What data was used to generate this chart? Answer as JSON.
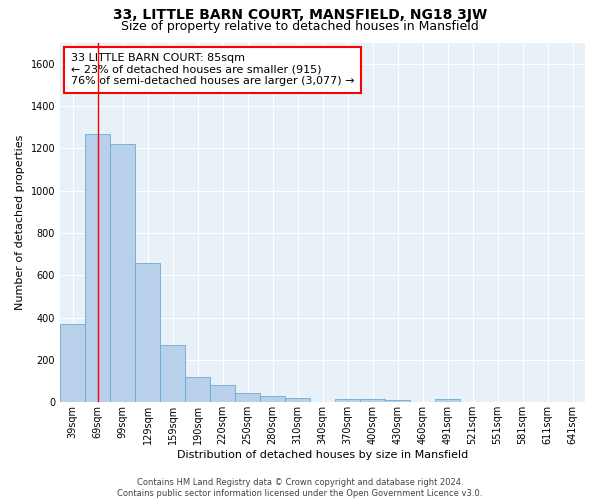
{
  "title": "33, LITTLE BARN COURT, MANSFIELD, NG18 3JW",
  "subtitle": "Size of property relative to detached houses in Mansfield",
  "xlabel": "Distribution of detached houses by size in Mansfield",
  "ylabel": "Number of detached properties",
  "categories": [
    "39sqm",
    "69sqm",
    "99sqm",
    "129sqm",
    "159sqm",
    "190sqm",
    "220sqm",
    "250sqm",
    "280sqm",
    "310sqm",
    "340sqm",
    "370sqm",
    "400sqm",
    "430sqm",
    "460sqm",
    "491sqm",
    "521sqm",
    "551sqm",
    "581sqm",
    "611sqm",
    "641sqm"
  ],
  "values": [
    370,
    1270,
    1220,
    660,
    270,
    120,
    80,
    45,
    30,
    20,
    0,
    15,
    15,
    10,
    0,
    15,
    0,
    0,
    0,
    0,
    0
  ],
  "bar_color": "#b8d0ea",
  "bar_edge_color": "#6aaad4",
  "annotation_text": "33 LITTLE BARN COURT: 85sqm\n← 23% of detached houses are smaller (915)\n76% of semi-detached houses are larger (3,077) →",
  "annotation_box_color": "white",
  "annotation_box_edge_color": "red",
  "vline_x_index": 1,
  "vline_color": "red",
  "ylim": [
    0,
    1700
  ],
  "yticks": [
    0,
    200,
    400,
    600,
    800,
    1000,
    1200,
    1400,
    1600
  ],
  "footer": "Contains HM Land Registry data © Crown copyright and database right 2024.\nContains public sector information licensed under the Open Government Licence v3.0.",
  "plot_bg_color": "#e8f0f8",
  "title_fontsize": 10,
  "subtitle_fontsize": 9,
  "tick_fontsize": 7,
  "ylabel_fontsize": 8,
  "xlabel_fontsize": 8,
  "footer_fontsize": 6,
  "annotation_fontsize": 8
}
